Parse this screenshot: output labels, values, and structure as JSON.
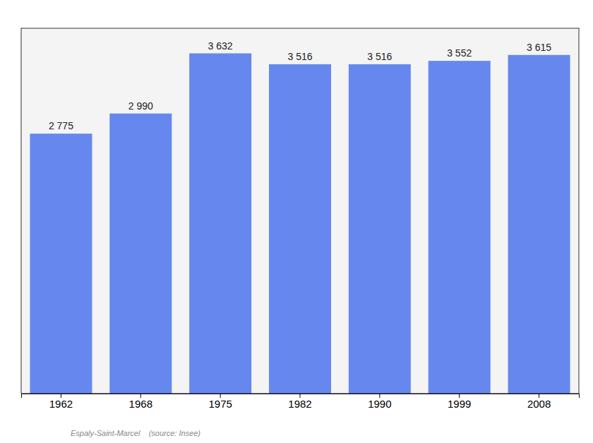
{
  "chart_data": {
    "type": "bar",
    "categories": [
      "1962",
      "1968",
      "1975",
      "1982",
      "1990",
      "1999",
      "2008"
    ],
    "values": [
      2775,
      2990,
      3632,
      3516,
      3516,
      3552,
      3615
    ],
    "value_labels": [
      "2 775",
      "2 990",
      "3 632",
      "3 516",
      "3 516",
      "3 552",
      "3 615"
    ],
    "data_labels": true,
    "color": "#6688EE",
    "ylim": [
      0,
      3900
    ],
    "tick_labels": "x",
    "annotations": [
      "Espaly-Saint-Marcel    (source: Insee)"
    ]
  }
}
